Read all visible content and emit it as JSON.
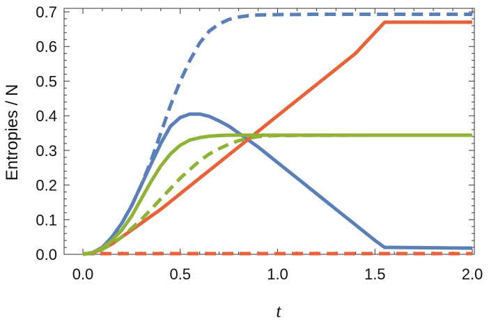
{
  "chart_data": {
    "type": "line",
    "xlabel": "t",
    "ylabel": "Entropies / N",
    "xlim": [
      0,
      2
    ],
    "ylim": [
      0,
      0.7
    ],
    "x_ticks": [
      "0.0",
      "0.5",
      "1.0",
      "1.5",
      "2.0"
    ],
    "y_ticks": [
      "0.0",
      "0.1",
      "0.2",
      "0.3",
      "0.4",
      "0.5",
      "0.6",
      "0.7"
    ],
    "grid": false,
    "legend": "none",
    "series": [
      {
        "color": "#5b80b8",
        "dash": false,
        "x": [
          0,
          0.05,
          0.1,
          0.15,
          0.2,
          0.25,
          0.3,
          0.35,
          0.4,
          0.45,
          0.5,
          0.55,
          0.6,
          0.65,
          0.7,
          0.75,
          0.8,
          0.9,
          1.0,
          1.1,
          1.2,
          1.3,
          1.4,
          1.5,
          1.55,
          1.6,
          1.8,
          2.0
        ],
        "y": [
          0,
          0.005,
          0.02,
          0.05,
          0.09,
          0.14,
          0.2,
          0.26,
          0.32,
          0.37,
          0.395,
          0.405,
          0.405,
          0.398,
          0.385,
          0.37,
          0.35,
          0.31,
          0.265,
          0.22,
          0.175,
          0.13,
          0.085,
          0.04,
          0.02,
          0.02,
          0.019,
          0.018
        ]
      },
      {
        "color": "#5b80b8",
        "dash": true,
        "x": [
          0,
          0.05,
          0.1,
          0.15,
          0.2,
          0.25,
          0.3,
          0.35,
          0.4,
          0.45,
          0.5,
          0.55,
          0.6,
          0.65,
          0.7,
          0.75,
          0.8,
          0.85,
          0.9,
          1.0,
          1.2,
          1.5,
          2.0
        ],
        "y": [
          0,
          0.005,
          0.02,
          0.05,
          0.09,
          0.14,
          0.2,
          0.27,
          0.35,
          0.43,
          0.5,
          0.56,
          0.61,
          0.645,
          0.665,
          0.678,
          0.685,
          0.689,
          0.691,
          0.692,
          0.693,
          0.693,
          0.693
        ]
      },
      {
        "color": "#e8623a",
        "dash": false,
        "x": [
          0,
          0.05,
          0.1,
          0.15,
          0.2,
          0.25,
          0.3,
          0.35,
          0.4,
          0.5,
          0.6,
          0.7,
          0.8,
          1.0,
          1.2,
          1.4,
          1.55,
          1.6,
          1.8,
          2.0
        ],
        "y": [
          0,
          0.004,
          0.015,
          0.03,
          0.05,
          0.07,
          0.09,
          0.11,
          0.13,
          0.175,
          0.22,
          0.265,
          0.31,
          0.4,
          0.49,
          0.58,
          0.67,
          0.67,
          0.67,
          0.67
        ]
      },
      {
        "color": "#e8623a",
        "dash": true,
        "x": [
          0,
          0.5,
          1.0,
          1.5,
          2.0
        ],
        "y": [
          0.002,
          0.002,
          0.002,
          0.002,
          0.002
        ]
      },
      {
        "color": "#8fb339",
        "dash": false,
        "x": [
          0,
          0.05,
          0.1,
          0.15,
          0.2,
          0.25,
          0.3,
          0.35,
          0.4,
          0.45,
          0.5,
          0.55,
          0.6,
          0.65,
          0.7,
          0.75,
          0.8,
          0.9,
          1.0,
          1.5,
          2.0
        ],
        "y": [
          0,
          0.005,
          0.018,
          0.04,
          0.07,
          0.11,
          0.16,
          0.21,
          0.255,
          0.29,
          0.315,
          0.33,
          0.337,
          0.341,
          0.343,
          0.344,
          0.344,
          0.344,
          0.344,
          0.344,
          0.344
        ]
      },
      {
        "color": "#8fb339",
        "dash": true,
        "x": [
          0,
          0.05,
          0.1,
          0.15,
          0.2,
          0.25,
          0.3,
          0.35,
          0.4,
          0.45,
          0.5,
          0.55,
          0.6,
          0.65,
          0.7,
          0.75,
          0.8,
          0.85,
          0.9,
          0.95,
          1.0,
          1.5,
          2.0
        ],
        "y": [
          0,
          0.004,
          0.014,
          0.03,
          0.05,
          0.075,
          0.1,
          0.13,
          0.16,
          0.19,
          0.22,
          0.245,
          0.27,
          0.29,
          0.305,
          0.318,
          0.328,
          0.335,
          0.34,
          0.342,
          0.343,
          0.344,
          0.344
        ]
      }
    ]
  }
}
